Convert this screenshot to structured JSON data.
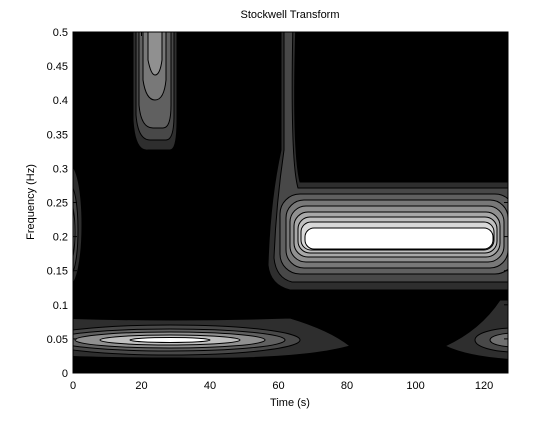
{
  "chart_data": {
    "type": "contour",
    "title": "Stockwell Transform",
    "x_label": "Time (s)",
    "y_label": "Frequency (Hz)",
    "xlim": [
      0,
      127
    ],
    "ylim": [
      0,
      0.5
    ],
    "xticks": [
      0,
      20,
      40,
      60,
      80,
      100,
      120
    ],
    "yticks": [
      0,
      0.05,
      0.1,
      0.15,
      0.2,
      0.25,
      0.3,
      0.35,
      0.4,
      0.45,
      0.5
    ]
  }
}
